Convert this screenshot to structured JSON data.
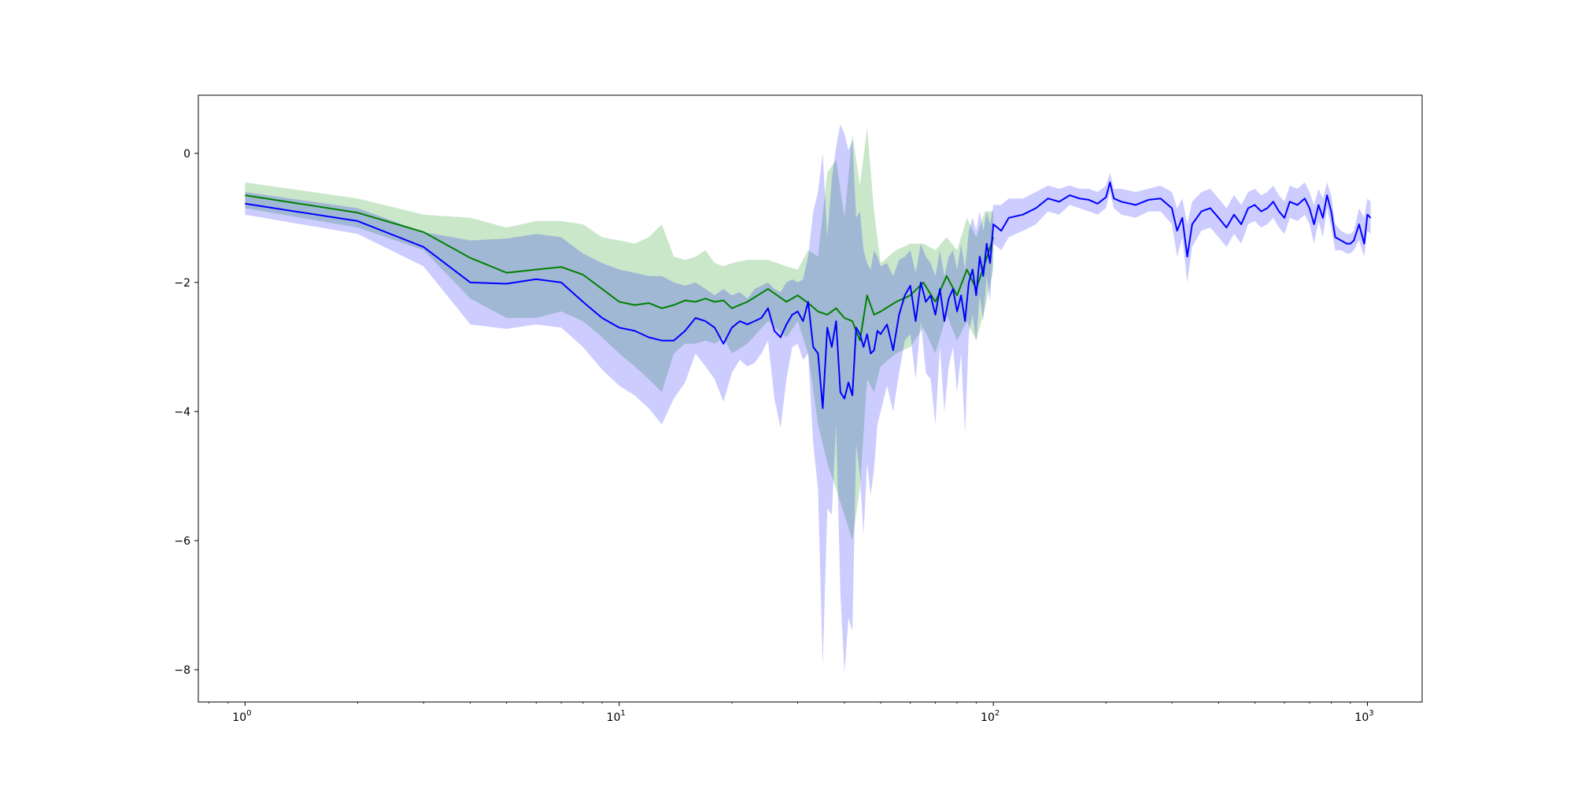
{
  "chart_data": {
    "type": "line",
    "title": "",
    "xlabel": "",
    "ylabel": "",
    "x_scale": "log",
    "xlim": [
      0.75,
      1400
    ],
    "ylim": [
      -8.5,
      0.9
    ],
    "grid": false,
    "legend": "none",
    "x_ticks": [
      {
        "value": 1,
        "base": "10",
        "exp": "0"
      },
      {
        "value": 10,
        "base": "10",
        "exp": "1"
      },
      {
        "value": 100,
        "base": "10",
        "exp": "2"
      },
      {
        "value": 1000,
        "base": "10",
        "exp": "3"
      }
    ],
    "y_ticks": [
      {
        "value": 0,
        "label": "0"
      },
      {
        "value": -2,
        "label": "−2"
      },
      {
        "value": -4,
        "label": "−4"
      },
      {
        "value": -6,
        "label": "−6"
      },
      {
        "value": -8,
        "label": "−8"
      }
    ],
    "series": [
      {
        "color": "#008000",
        "band_color": "#2ca02c",
        "band_opacity": 0.25,
        "x": [
          1,
          2,
          3,
          4,
          5,
          6,
          7,
          8,
          9,
          10,
          11,
          12,
          13,
          14,
          15,
          16,
          17,
          18,
          19,
          20,
          22,
          25,
          28,
          30,
          32,
          34,
          36,
          38,
          40,
          42,
          44,
          46,
          48,
          50,
          55,
          60,
          65,
          70,
          75,
          80,
          85,
          90,
          95,
          100
        ],
        "y": [
          -0.65,
          -0.92,
          -1.22,
          -1.62,
          -1.85,
          -1.8,
          -1.76,
          -1.88,
          -2.1,
          -2.3,
          -2.35,
          -2.32,
          -2.4,
          -2.35,
          -2.28,
          -2.3,
          -2.25,
          -2.3,
          -2.28,
          -2.4,
          -2.3,
          -2.1,
          -2.3,
          -2.2,
          -2.32,
          -2.45,
          -2.5,
          -2.4,
          -2.55,
          -2.6,
          -2.9,
          -2.2,
          -2.5,
          -2.45,
          -2.3,
          -2.2,
          -2.0,
          -2.3,
          -1.9,
          -2.2,
          -1.8,
          -2.1,
          -1.7,
          -1.3
        ],
        "upper": [
          -0.45,
          -0.7,
          -0.95,
          -1.0,
          -1.15,
          -1.05,
          -1.05,
          -1.1,
          -1.3,
          -1.35,
          -1.4,
          -1.3,
          -1.1,
          -1.6,
          -1.65,
          -1.6,
          -1.5,
          -1.7,
          -1.75,
          -1.7,
          -1.65,
          -1.65,
          -1.75,
          -1.8,
          -1.5,
          -1.6,
          -0.3,
          -0.1,
          -1.0,
          0.3,
          -0.5,
          0.4,
          -0.9,
          -1.7,
          -1.5,
          -1.4,
          -1.4,
          -1.5,
          -1.3,
          -1.5,
          -1.0,
          -1.3,
          -0.9,
          -0.9
        ],
        "lower": [
          -0.85,
          -1.15,
          -1.5,
          -2.25,
          -2.55,
          -2.55,
          -2.45,
          -2.6,
          -2.85,
          -3.1,
          -3.3,
          -3.5,
          -3.7,
          -3.1,
          -2.95,
          -2.95,
          -2.9,
          -2.95,
          -2.85,
          -3.1,
          -2.95,
          -2.6,
          -2.85,
          -2.6,
          -3.1,
          -4.2,
          -4.8,
          -5.2,
          -5.6,
          -6.0,
          -5.2,
          -3.5,
          -3.7,
          -3.3,
          -3.1,
          -3.0,
          -2.7,
          -3.1,
          -2.5,
          -2.9,
          -2.6,
          -2.9,
          -2.4,
          -1.8
        ]
      },
      {
        "color": "#0000ff",
        "band_color": "#0000ff",
        "band_opacity": 0.2,
        "x": [
          1,
          2,
          3,
          4,
          5,
          6,
          7,
          8,
          9,
          10,
          11,
          12,
          13,
          14,
          15,
          16,
          17,
          18,
          19,
          20,
          21,
          22,
          23,
          24,
          25,
          26,
          27,
          28,
          29,
          30,
          31,
          32,
          33,
          34,
          35,
          36,
          37,
          38,
          39,
          40,
          41,
          42,
          43,
          44,
          45,
          46,
          47,
          48,
          49,
          50,
          52,
          54,
          56,
          58,
          60,
          62,
          64,
          66,
          68,
          70,
          72,
          74,
          76,
          78,
          80,
          82,
          84,
          86,
          88,
          90,
          92,
          94,
          96,
          98,
          100,
          105,
          110,
          120,
          130,
          140,
          150,
          160,
          170,
          180,
          190,
          200,
          205,
          210,
          220,
          240,
          260,
          280,
          300,
          310,
          320,
          330,
          340,
          360,
          380,
          400,
          420,
          440,
          460,
          480,
          500,
          520,
          540,
          560,
          580,
          600,
          620,
          650,
          680,
          700,
          720,
          740,
          760,
          780,
          800,
          820,
          850,
          880,
          900,
          920,
          950,
          980,
          1000,
          1020
        ],
        "y": [
          -0.78,
          -1.05,
          -1.45,
          -2.0,
          -2.02,
          -1.95,
          -2.0,
          -2.3,
          -2.55,
          -2.7,
          -2.75,
          -2.85,
          -2.9,
          -2.9,
          -2.75,
          -2.55,
          -2.6,
          -2.7,
          -2.95,
          -2.7,
          -2.6,
          -2.65,
          -2.6,
          -2.55,
          -2.4,
          -2.75,
          -2.85,
          -2.65,
          -2.5,
          -2.45,
          -2.6,
          -2.3,
          -3.0,
          -3.1,
          -3.95,
          -2.7,
          -3.0,
          -2.6,
          -3.7,
          -3.8,
          -3.55,
          -3.75,
          -2.7,
          -2.8,
          -3.0,
          -2.8,
          -3.1,
          -3.05,
          -2.75,
          -2.8,
          -2.65,
          -3.05,
          -2.5,
          -2.2,
          -2.05,
          -2.6,
          -2.0,
          -2.3,
          -2.2,
          -2.5,
          -2.1,
          -2.6,
          -2.25,
          -2.1,
          -2.45,
          -2.2,
          -2.6,
          -2.0,
          -1.8,
          -2.2,
          -1.6,
          -1.9,
          -1.4,
          -1.7,
          -1.1,
          -1.2,
          -1.0,
          -0.95,
          -0.85,
          -0.7,
          -0.75,
          -0.65,
          -0.7,
          -0.72,
          -0.78,
          -0.68,
          -0.45,
          -0.7,
          -0.75,
          -0.8,
          -0.72,
          -0.7,
          -0.85,
          -1.2,
          -1.0,
          -1.6,
          -1.1,
          -0.9,
          -0.85,
          -1.0,
          -1.15,
          -0.95,
          -1.1,
          -0.85,
          -0.8,
          -0.9,
          -0.85,
          -0.75,
          -0.9,
          -1.0,
          -0.75,
          -0.8,
          -0.7,
          -0.85,
          -1.1,
          -0.8,
          -1.0,
          -0.65,
          -0.9,
          -1.3,
          -1.35,
          -1.4,
          -1.4,
          -1.35,
          -1.1,
          -1.4,
          -0.95,
          -1.0
        ],
        "upper": [
          -0.6,
          -0.85,
          -1.22,
          -1.35,
          -1.32,
          -1.25,
          -1.3,
          -1.55,
          -1.7,
          -1.8,
          -1.85,
          -1.9,
          -1.9,
          -2.0,
          -2.05,
          -2.0,
          -2.1,
          -2.2,
          -2.1,
          -2.2,
          -2.15,
          -2.25,
          -2.1,
          -2.05,
          -2.0,
          -2.1,
          -2.15,
          -2.0,
          -1.95,
          -2.0,
          -1.95,
          -1.6,
          -0.9,
          -0.6,
          0.0,
          -1.3,
          -0.4,
          0.1,
          0.45,
          0.3,
          0.05,
          0.2,
          -1.0,
          -0.9,
          -1.5,
          -1.7,
          -1.8,
          -1.5,
          -1.6,
          -1.75,
          -1.7,
          -1.9,
          -1.65,
          -1.6,
          -1.5,
          -1.85,
          -1.4,
          -1.6,
          -1.7,
          -1.9,
          -1.5,
          -1.9,
          -1.6,
          -1.5,
          -1.8,
          -1.4,
          -1.8,
          -1.2,
          -1.0,
          -1.2,
          -0.9,
          -1.2,
          -0.9,
          -1.1,
          -0.8,
          -0.8,
          -0.7,
          -0.7,
          -0.6,
          -0.5,
          -0.55,
          -0.5,
          -0.55,
          -0.55,
          -0.6,
          -0.5,
          -0.3,
          -0.55,
          -0.55,
          -0.6,
          -0.55,
          -0.5,
          -0.6,
          -0.85,
          -0.7,
          -1.1,
          -0.75,
          -0.6,
          -0.55,
          -0.7,
          -0.85,
          -0.65,
          -0.8,
          -0.6,
          -0.55,
          -0.65,
          -0.6,
          -0.5,
          -0.65,
          -0.75,
          -0.5,
          -0.55,
          -0.45,
          -0.6,
          -0.8,
          -0.55,
          -0.7,
          -0.45,
          -0.65,
          -1.1,
          -1.2,
          -1.25,
          -1.25,
          -1.2,
          -0.85,
          -1.0,
          -0.7,
          -0.75
        ],
        "lower": [
          -0.95,
          -1.25,
          -1.75,
          -2.65,
          -2.72,
          -2.65,
          -2.7,
          -3.0,
          -3.35,
          -3.6,
          -3.75,
          -3.95,
          -4.2,
          -3.8,
          -3.55,
          -3.1,
          -3.3,
          -3.5,
          -3.85,
          -3.4,
          -3.2,
          -3.3,
          -3.25,
          -3.1,
          -2.9,
          -3.8,
          -4.25,
          -3.5,
          -3.0,
          -2.95,
          -3.2,
          -3.1,
          -4.5,
          -5.2,
          -7.95,
          -5.5,
          -5.6,
          -4.2,
          -6.8,
          -8.05,
          -7.2,
          -7.4,
          -4.5,
          -5.0,
          -5.9,
          -4.8,
          -5.3,
          -4.9,
          -4.2,
          -4.0,
          -3.6,
          -4.0,
          -3.4,
          -2.9,
          -2.8,
          -3.5,
          -2.6,
          -3.4,
          -3.5,
          -4.2,
          -3.0,
          -4.0,
          -3.3,
          -3.0,
          -3.7,
          -3.1,
          -4.35,
          -2.8,
          -2.5,
          -2.9,
          -2.2,
          -2.6,
          -1.9,
          -2.3,
          -1.4,
          -1.5,
          -1.3,
          -1.2,
          -1.1,
          -0.9,
          -0.95,
          -0.8,
          -0.85,
          -0.9,
          -0.95,
          -0.85,
          -0.6,
          -0.85,
          -0.95,
          -1.0,
          -0.9,
          -0.9,
          -1.1,
          -1.6,
          -1.3,
          -2.0,
          -1.45,
          -1.2,
          -1.15,
          -1.3,
          -1.45,
          -1.25,
          -1.4,
          -1.1,
          -1.05,
          -1.15,
          -1.1,
          -1.0,
          -1.15,
          -1.25,
          -1.0,
          -1.05,
          -0.95,
          -1.1,
          -1.4,
          -1.05,
          -1.3,
          -0.85,
          -1.15,
          -1.5,
          -1.5,
          -1.55,
          -1.55,
          -1.5,
          -1.35,
          -1.6,
          -1.2,
          -1.25
        ]
      }
    ]
  }
}
